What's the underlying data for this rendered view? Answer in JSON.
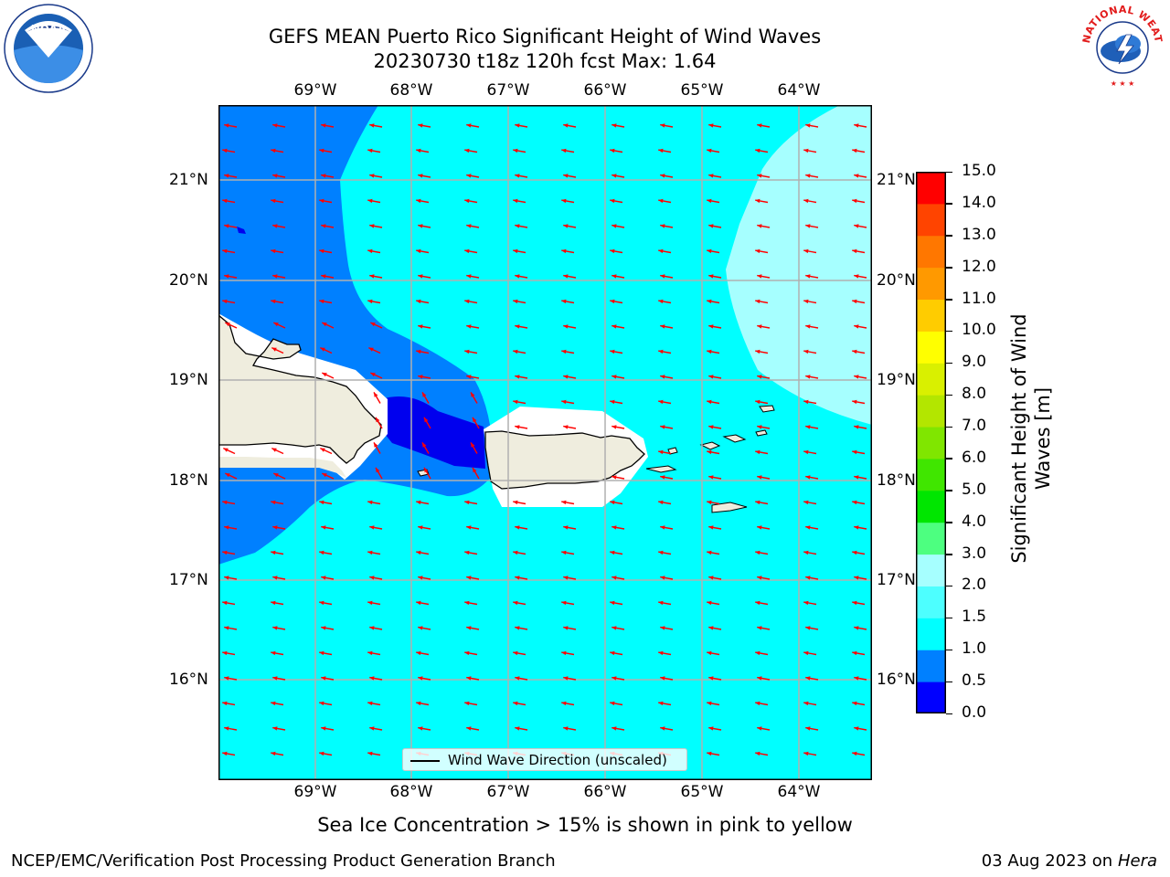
{
  "header": {
    "title_line1": "GEFS MEAN Puerto Rico Significant Height of Wind Waves",
    "title_line2": "20230730 t18z 120h fcst   Max: 1.64"
  },
  "logos": {
    "left": {
      "icon": "noaa-logo-icon",
      "text": "NOAA",
      "ring_text": "NATIONAL OCEANIC AND ATMOSPHERIC ADMINISTRATION · U.S. DEPARTMENT OF COMMERCE"
    },
    "right": {
      "icon": "nws-logo-icon",
      "ring_text": "NATIONAL WEATHER SERVICE"
    }
  },
  "map": {
    "lon_labels": [
      "69°W",
      "68°W",
      "67°W",
      "66°W",
      "65°W",
      "64°W"
    ],
    "lat_labels": [
      "21°N",
      "20°N",
      "19°N",
      "18°N",
      "17°N",
      "16°N"
    ],
    "colors": {
      "deep_blue": "#0000ee",
      "blue": "#0080ff",
      "cyan": "#00ffff",
      "light_cyan": "#a6ffff",
      "land": "#efedde",
      "arrow": "#ff0000"
    },
    "legend_text": "Wind Wave Direction (unscaled)"
  },
  "colorbar": {
    "label": "Significant Height of Wind Waves [m]",
    "ticks": [
      "0.0",
      "0.5",
      "1.0",
      "1.5",
      "2.0",
      "3.0",
      "4.0",
      "5.0",
      "6.0",
      "7.0",
      "8.0",
      "9.0",
      "10.0",
      "11.0",
      "12.0",
      "13.0",
      "14.0",
      "15.0"
    ],
    "colors": [
      "#0000ff",
      "#0080ff",
      "#00ffff",
      "#4dffff",
      "#a6ffff",
      "#4dff80",
      "#00e600",
      "#40e600",
      "#80e600",
      "#b3e600",
      "#d9f000",
      "#ffff00",
      "#ffcc00",
      "#ff9900",
      "#ff7700",
      "#ff4400",
      "#ff0000"
    ]
  },
  "footer": {
    "note": "Sea Ice Concentration > 15% is shown in pink to yellow",
    "left": "NCEP/EMC/Verification Post Processing Product Generation Branch",
    "date": "03 Aug 2023 on",
    "host": "Hera"
  }
}
